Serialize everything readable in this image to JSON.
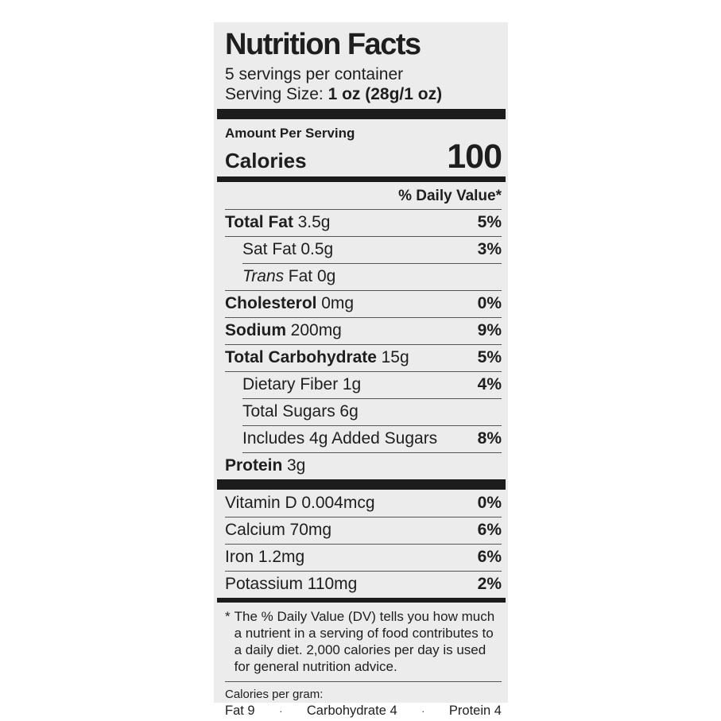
{
  "label": {
    "title": "Nutrition Facts",
    "servings_per_container": "5 servings per container",
    "serving_size_label": "Serving Size: ",
    "serving_size_value": "1 oz (28g/1 oz)",
    "amount_per_serving": "Amount Per Serving",
    "calories_label": "Calories",
    "calories_value": "100",
    "daily_value_header": "% Daily Value*",
    "nutrients": [
      {
        "name": "Total Fat",
        "amount": "3.5g",
        "dv": "5%"
      },
      {
        "name": "Sat Fat",
        "amount": "0.5g",
        "dv": "3%"
      },
      {
        "name": "Trans",
        "amount": "Fat 0g",
        "dv": ""
      },
      {
        "name": "Cholesterol",
        "amount": "0mg",
        "dv": "0%"
      },
      {
        "name": "Sodium",
        "amount": "200mg",
        "dv": "9%"
      },
      {
        "name": "Total Carbohydrate",
        "amount": "15g",
        "dv": "5%"
      },
      {
        "name": "Dietary Fiber",
        "amount": "1g",
        "dv": "4%"
      },
      {
        "name": "Total Sugars",
        "amount": "6g",
        "dv": ""
      },
      {
        "name": "Includes 4g Added Sugars",
        "amount": "",
        "dv": "8%"
      },
      {
        "name": "Protein",
        "amount": "3g",
        "dv": ""
      }
    ],
    "vitamins": [
      {
        "name": "Vitamin D",
        "amount": "0.004mcg",
        "dv": "0%"
      },
      {
        "name": "Calcium",
        "amount": "70mg",
        "dv": "6%"
      },
      {
        "name": "Iron",
        "amount": "1.2mg",
        "dv": "6%"
      },
      {
        "name": "Potassium",
        "amount": "110mg",
        "dv": "2%"
      }
    ],
    "footnote_marker": "*",
    "footnote": "The % Daily Value (DV) tells you how much a nutrient in a serving of food contributes to a daily diet. 2,000 calories per day is used for general nutrition advice.",
    "calories_per_gram": {
      "heading": "Calories per gram:",
      "items": [
        "Fat 9",
        "Carbohydrate 4",
        "Protein 4"
      ],
      "separator": "·"
    }
  },
  "colors": {
    "page_background": "#ffffff",
    "label_background": "#ececec",
    "text": "#1e1e1e",
    "bar": "#1c1c1c",
    "hairline": "#555555"
  }
}
